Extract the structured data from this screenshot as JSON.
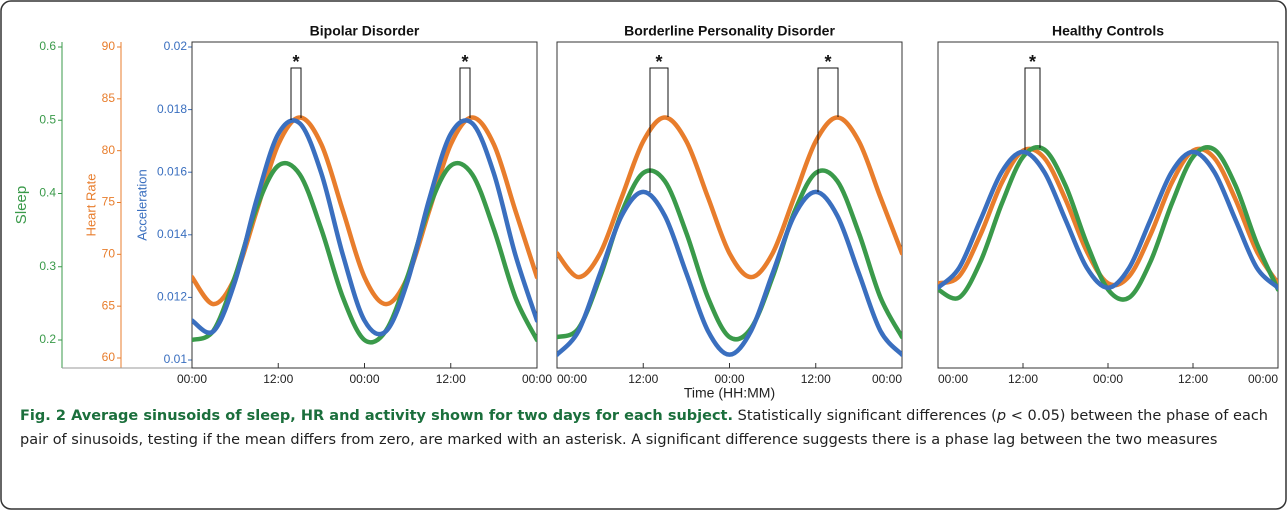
{
  "chart_data": [
    {
      "type": "line",
      "title": "Bipolar Disorder",
      "x": [
        0,
        3,
        6,
        9,
        12,
        15,
        18,
        21,
        24,
        27,
        30,
        33,
        36,
        39,
        42,
        45,
        48
      ],
      "xlim": [
        0,
        48
      ],
      "xticks": [
        {
          "value": 0,
          "label": "00:00"
        },
        {
          "value": 12,
          "label": "12:00"
        },
        {
          "value": 24,
          "label": "00:00"
        },
        {
          "value": 36,
          "label": "12:00"
        },
        {
          "value": 48,
          "label": "00:00"
        }
      ],
      "ylabel": "Sleep",
      "ylim": [
        0.2,
        0.6
      ],
      "yticks": [
        0.2,
        0.3,
        0.4,
        0.5,
        0.6
      ],
      "ycolor": "#3a9a4a",
      "y2label": "Heart Rate",
      "y2lim": [
        60,
        90
      ],
      "y2ticks": [
        60,
        65,
        70,
        75,
        80,
        85,
        90
      ],
      "y2color": "#e87d2c",
      "y3label": "Acceleration",
      "y3lim": [
        0.01,
        0.02
      ],
      "y3ticks": [
        0.01,
        0.012,
        0.014,
        0.016,
        0.018,
        0.02
      ],
      "y3color": "#3a6fbf",
      "annotations": [
        "*",
        "*"
      ],
      "series": [
        {
          "color": "#e87d2c",
          "axis": "y2",
          "values": [
            67.8,
            65.2,
            67.8,
            74.2,
            80.6,
            83.2,
            80.6,
            74.2,
            67.8,
            65.2,
            67.8,
            74.2,
            80.6,
            83.2,
            80.6,
            74.2,
            67.8
          ]
        },
        {
          "color": "#3a9a4a",
          "axis": "y",
          "values": [
            0.2,
            0.213,
            0.287,
            0.381,
            0.438,
            0.426,
            0.351,
            0.258,
            0.2,
            0.213,
            0.287,
            0.381,
            0.438,
            0.426,
            0.351,
            0.258,
            0.2
          ]
        },
        {
          "color": "#3a6fbf",
          "axis": "y3",
          "values": [
            0.01126,
            0.01092,
            0.01252,
            0.01513,
            0.01722,
            0.01756,
            0.01596,
            0.01335,
            0.01126,
            0.01092,
            0.01252,
            0.01513,
            0.01722,
            0.01756,
            0.01596,
            0.01335,
            0.01126
          ]
        }
      ]
    },
    {
      "type": "line",
      "title": "Borderline Personality Disorder",
      "x": [
        0,
        3,
        6,
        9,
        12,
        15,
        18,
        21,
        24,
        27,
        30,
        33,
        36,
        39,
        42,
        45,
        48
      ],
      "xlim": [
        0,
        48
      ],
      "xticks": [
        {
          "value": 0,
          "label": "00:00"
        },
        {
          "value": 12,
          "label": "12:00"
        },
        {
          "value": 24,
          "label": "00:00"
        },
        {
          "value": 36,
          "label": "12:00"
        },
        {
          "value": 48,
          "label": "00:00"
        }
      ],
      "xlabel": "Time (HH:MM)",
      "annotations": [
        "*",
        "*"
      ],
      "series": [
        {
          "color": "#e87d2c",
          "axis": "y2",
          "values": [
            70.1,
            67.8,
            70.1,
            75.5,
            80.9,
            83.2,
            80.9,
            75.5,
            70.1,
            67.8,
            70.1,
            75.5,
            80.9,
            83.2,
            80.9,
            75.5,
            70.1
          ]
        },
        {
          "color": "#3a9a4a",
          "axis": "y",
          "values": [
            0.204,
            0.216,
            0.286,
            0.374,
            0.428,
            0.417,
            0.346,
            0.258,
            0.204,
            0.216,
            0.286,
            0.374,
            0.428,
            0.417,
            0.346,
            0.258,
            0.204
          ]
        },
        {
          "color": "#3a6fbf",
          "axis": "y3",
          "values": [
            0.01017,
            0.01093,
            0.01277,
            0.01461,
            0.01537,
            0.01461,
            0.01277,
            0.01093,
            0.01017,
            0.01093,
            0.01277,
            0.01461,
            0.01537,
            0.01461,
            0.01277,
            0.01093,
            0.01017
          ]
        }
      ]
    },
    {
      "type": "line",
      "title": "Healthy Controls",
      "x": [
        0,
        3,
        6,
        9,
        12,
        15,
        18,
        21,
        24,
        27,
        30,
        33,
        36,
        39,
        42,
        45,
        48
      ],
      "xlim": [
        0,
        48
      ],
      "xticks": [
        {
          "value": 0,
          "label": "00:00"
        },
        {
          "value": 12,
          "label": "12:00"
        },
        {
          "value": 24,
          "label": "00:00"
        },
        {
          "value": 36,
          "label": "12:00"
        },
        {
          "value": 48,
          "label": "00:00"
        }
      ],
      "annotations": [
        "*"
      ],
      "series": [
        {
          "color": "#e87d2c",
          "axis": "y2",
          "values": [
            67.2,
            67.9,
            71.9,
            76.9,
            80,
            79.3,
            75.3,
            70.3,
            67.2,
            67.9,
            71.9,
            76.9,
            80,
            79.3,
            75.3,
            70.3,
            67.2
          ]
        },
        {
          "color": "#3a9a4a",
          "axis": "y",
          "values": [
            0.269,
            0.258,
            0.307,
            0.386,
            0.45,
            0.46,
            0.411,
            0.332,
            0.269,
            0.258,
            0.307,
            0.386,
            0.45,
            0.46,
            0.411,
            0.332,
            0.269
          ]
        },
        {
          "color": "#3a6fbf",
          "axis": "y3",
          "values": [
            0.01231,
            0.01295,
            0.01448,
            0.01601,
            0.01665,
            0.01601,
            0.01448,
            0.01295,
            0.01231,
            0.01295,
            0.01448,
            0.01601,
            0.01665,
            0.01601,
            0.01448,
            0.01295,
            0.01231
          ]
        }
      ]
    }
  ],
  "caption": {
    "title": "Fig. 2 Average sinusoids of sleep, HR and activity shown for two days for each subject.",
    "text_before": "Statistically significant differences (",
    "italic": "p",
    "text_after": " < 0.05) between the phase of each pair of sinusoids, testing if the mean differs from zero, are marked with an asterisk. A significant difference suggests there is a phase lag between the two measures"
  }
}
